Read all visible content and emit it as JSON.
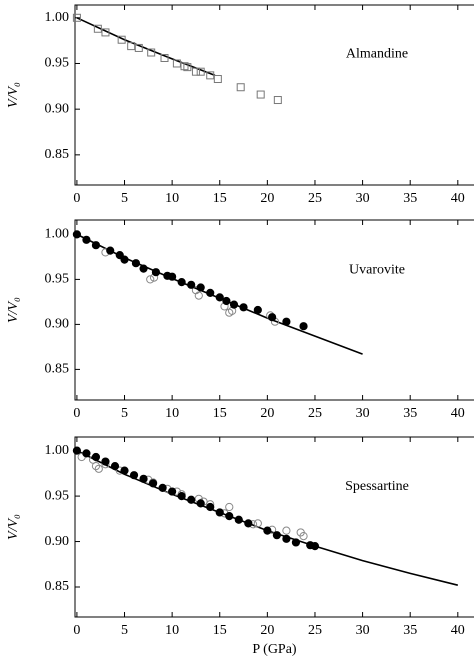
{
  "chart_data": [
    {
      "type": "scatter",
      "label": "Almandine",
      "y_label": "V/V₀",
      "xlim": [
        -0.2,
        41.7
      ],
      "ylim": [
        0.817,
        1.014
      ],
      "xticks": [
        0,
        5,
        10,
        15,
        20,
        25,
        30,
        35,
        40
      ],
      "yticks": [
        {
          "value": 0.85,
          "label": "0.85"
        },
        {
          "value": 0.9,
          "label": "0.90"
        },
        {
          "value": 0.95,
          "label": "0.95"
        },
        {
          "value": 1.0,
          "label": "1.00"
        }
      ],
      "series": [
        {
          "style": "line",
          "color": "#000000",
          "x": [
            0,
            5,
            10,
            14.5
          ],
          "values": [
            1.0,
            0.976,
            0.955,
            0.937
          ]
        },
        {
          "style": "open-square",
          "color": "#777777",
          "x": [
            0,
            2.2,
            3,
            4.7,
            5.7,
            6.5,
            7.8,
            9.2,
            10.5,
            11.3,
            11.6,
            12.5,
            13,
            14,
            14.8,
            17.2,
            19.3,
            21.1
          ],
          "values": [
            1.0,
            0.988,
            0.984,
            0.976,
            0.969,
            0.967,
            0.962,
            0.956,
            0.95,
            0.947,
            0.946,
            0.941,
            0.941,
            0.937,
            0.933,
            0.924,
            0.916,
            0.91
          ]
        }
      ]
    },
    {
      "type": "scatter",
      "label": "Uvarovite",
      "y_label": "V/V₀",
      "xlim": [
        -0.2,
        41.7
      ],
      "ylim": [
        0.816,
        1.016
      ],
      "xticks": [
        0,
        5,
        10,
        15,
        20,
        25,
        30,
        35,
        40
      ],
      "yticks": [
        {
          "value": 0.85,
          "label": "0.85"
        },
        {
          "value": 0.9,
          "label": "0.90"
        },
        {
          "value": 0.95,
          "label": "0.95"
        },
        {
          "value": 1.0,
          "label": "1.00"
        }
      ],
      "series": [
        {
          "style": "line",
          "color": "#000000",
          "x": [
            0,
            5,
            10,
            15,
            20,
            25,
            30
          ],
          "values": [
            1.0,
            0.974,
            0.951,
            0.929,
            0.907,
            0.887,
            0.867
          ]
        },
        {
          "style": "open-circle",
          "color": "#888888",
          "x": [
            3,
            7.7,
            8.1,
            12.5,
            12.8,
            15.5,
            16,
            16.3,
            20.3,
            20.8
          ],
          "values": [
            0.98,
            0.95,
            0.952,
            0.938,
            0.932,
            0.92,
            0.913,
            0.915,
            0.91,
            0.903
          ]
        },
        {
          "style": "filled-circle",
          "color": "#000000",
          "x": [
            0,
            1,
            2,
            3.5,
            4.5,
            5,
            6.2,
            7,
            8.3,
            9.5,
            10,
            11,
            12,
            13,
            14,
            15,
            15.7,
            16.5,
            17.5,
            19,
            20.5,
            22,
            23.8
          ],
          "values": [
            1.0,
            0.994,
            0.988,
            0.982,
            0.977,
            0.972,
            0.968,
            0.962,
            0.958,
            0.954,
            0.953,
            0.947,
            0.944,
            0.941,
            0.935,
            0.93,
            0.926,
            0.922,
            0.919,
            0.916,
            0.908,
            0.903,
            0.898
          ]
        }
      ]
    },
    {
      "type": "scatter",
      "label": "Spessartine",
      "y_label": "V/V₀",
      "x_label": "P (GPa)",
      "xlim": [
        -0.2,
        41.7
      ],
      "ylim": [
        0.817,
        1.015
      ],
      "xticks": [
        0,
        5,
        10,
        15,
        20,
        25,
        30,
        35,
        40
      ],
      "yticks": [
        {
          "value": 0.85,
          "label": "0.85"
        },
        {
          "value": 0.9,
          "label": "0.90"
        },
        {
          "value": 0.95,
          "label": "0.95"
        },
        {
          "value": 1.0,
          "label": "1.00"
        }
      ],
      "series": [
        {
          "style": "line",
          "color": "#000000",
          "x": [
            0,
            5,
            10,
            15,
            20,
            25,
            30,
            35,
            40
          ],
          "values": [
            1.0,
            0.974,
            0.952,
            0.932,
            0.912,
            0.895,
            0.879,
            0.865,
            0.852
          ]
        },
        {
          "style": "open-circle",
          "color": "#888888",
          "x": [
            0.5,
            1.7,
            2,
            2.3,
            3,
            4.5,
            7.5,
            8,
            9.5,
            10.5,
            11,
            12.8,
            13.3,
            14,
            15.5,
            16,
            18.5,
            19,
            20.5,
            22,
            23.5,
            23.8
          ],
          "values": [
            0.993,
            0.99,
            0.983,
            0.98,
            0.985,
            0.978,
            0.968,
            0.965,
            0.958,
            0.955,
            0.952,
            0.947,
            0.944,
            0.941,
            0.931,
            0.938,
            0.919,
            0.92,
            0.913,
            0.912,
            0.91,
            0.906
          ]
        },
        {
          "style": "filled-circle",
          "color": "#000000",
          "x": [
            0,
            1,
            2,
            3,
            4,
            5,
            6,
            7,
            8,
            9,
            10,
            11,
            12,
            13,
            14,
            15,
            16,
            17,
            18,
            20,
            21,
            22,
            23,
            24.5,
            25
          ],
          "values": [
            1.0,
            0.997,
            0.993,
            0.988,
            0.983,
            0.978,
            0.973,
            0.969,
            0.964,
            0.959,
            0.955,
            0.95,
            0.946,
            0.942,
            0.938,
            0.932,
            0.928,
            0.924,
            0.92,
            0.912,
            0.907,
            0.903,
            0.899,
            0.896,
            0.895
          ]
        }
      ]
    }
  ]
}
